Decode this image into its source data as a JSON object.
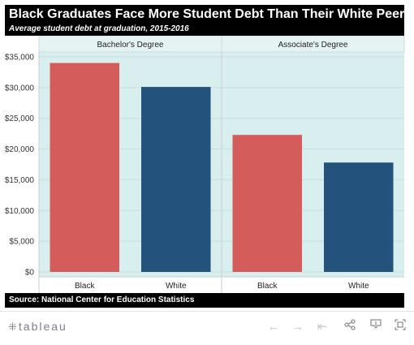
{
  "header": {
    "title": "Black Graduates Face More Student Debt Than Their White Peers",
    "subtitle": "Average student debt at graduation, 2015-2016"
  },
  "source": "Source: National Center for Education Statistics",
  "colors": {
    "black": "#d45c5a",
    "white": "#23527c",
    "plot_bg": "#d9efef",
    "panel_bg": "#e6f3f3"
  },
  "chart_data": {
    "type": "bar",
    "panels": [
      {
        "title": "Bachelor's Degree",
        "categories": [
          "Black",
          "White"
        ],
        "values": [
          34000,
          30100
        ]
      },
      {
        "title": "Associate's Degree",
        "categories": [
          "Black",
          "White"
        ],
        "values": [
          22300,
          17800
        ]
      }
    ],
    "ylim": [
      0,
      35000
    ],
    "yticks": [
      0,
      5000,
      10000,
      15000,
      20000,
      25000,
      30000,
      35000
    ],
    "ytick_labels": [
      "$0",
      "$5,000",
      "$10,000",
      "$15,000",
      "$20,000",
      "$25,000",
      "$30,000",
      "$35,000"
    ],
    "grid": true
  },
  "toolbar": {
    "logo_mark": "⁜",
    "logo_text": "tableau",
    "icons": [
      "undo-icon",
      "redo-icon",
      "revert-icon",
      "share-icon",
      "download-icon",
      "fullscreen-icon"
    ]
  }
}
